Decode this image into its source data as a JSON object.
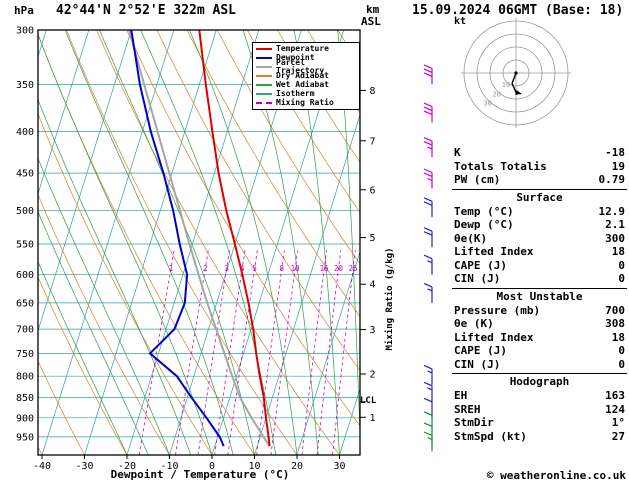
{
  "header": {
    "title": "42°44'N 2°52'E 322m ASL",
    "datetime": "15.09.2024 06GMT (Base: 18)"
  },
  "axes": {
    "pressure_unit": "hPa",
    "pressure_ticks": [
      300,
      350,
      400,
      450,
      500,
      550,
      600,
      650,
      700,
      750,
      800,
      850,
      900,
      950
    ],
    "temp_axis_label": "Dewpoint / Temperature (°C)",
    "temp_ticks": [
      -40,
      -30,
      -20,
      -10,
      0,
      10,
      20,
      30
    ],
    "km_label": "km",
    "asl_label": "ASL",
    "km_ticks": [
      1,
      2,
      3,
      4,
      5,
      6,
      7,
      8
    ],
    "mixing_ratio_axis_label": "Mixing Ratio (g/kg)",
    "lcl_label": "LCL"
  },
  "legend": [
    {
      "label": "Temperature",
      "color": "#dd0000",
      "dashed": false
    },
    {
      "label": "Dewpoint",
      "color": "#0000cc",
      "dashed": false
    },
    {
      "label": "Parcel Trajectory",
      "color": "#a6a6a6",
      "dashed": false
    },
    {
      "label": "Dry Adiabat",
      "color": "#d98032",
      "dashed": false
    },
    {
      "label": "Wet Adiabat",
      "color": "#2f9e44",
      "dashed": false
    },
    {
      "label": "Isotherm",
      "color": "#33a0a0",
      "dashed": false
    },
    {
      "label": "Mixing Ratio",
      "color": "#cc00cc",
      "dashed": true
    }
  ],
  "chart_data": {
    "type": "line",
    "title": "Skew-T log-P sounding",
    "xlabel": "Dewpoint / Temperature (°C)",
    "ylabel": "hPa",
    "xlim": [
      -40,
      35
    ],
    "ylim_hpa": [
      1000,
      300
    ],
    "pressure_hpa": [
      975,
      950,
      900,
      850,
      800,
      750,
      700,
      650,
      600,
      550,
      500,
      450,
      400,
      350,
      300
    ],
    "series": [
      {
        "name": "Temperature",
        "color": "#dd0000",
        "values": [
          12.9,
          12,
          10,
          8,
          5.5,
          3,
          0.5,
          -2.5,
          -6,
          -10,
          -14.5,
          -19,
          -23.5,
          -28.5,
          -34
        ]
      },
      {
        "name": "Dewpoint",
        "color": "#0000cc",
        "values": [
          2.1,
          0.5,
          -4,
          -9,
          -14,
          -22,
          -18,
          -17.5,
          -19,
          -23,
          -27,
          -32,
          -38,
          -44,
          -50
        ]
      },
      {
        "name": "Parcel Trajectory",
        "color": "#a6a6a6",
        "values": [
          12.9,
          10.8,
          6.6,
          2.4,
          -1,
          -4.5,
          -8.2,
          -12.2,
          -16.3,
          -20.7,
          -25.4,
          -30.6,
          -36.4,
          -43,
          -50.5
        ]
      }
    ],
    "mixing_ratio_g_kg": [
      1,
      2,
      3,
      4,
      5,
      8,
      10,
      16,
      20,
      25
    ],
    "mixing_ratio_label_pressure": 590,
    "isotherms_c": {
      "min": -70,
      "max": 40,
      "step": 10
    },
    "dry_adiabats_c": {
      "min": -40,
      "max": 120,
      "step": 10
    },
    "wet_adiabats_c": {
      "min": -20,
      "max": 40,
      "step": 5
    },
    "lcl_pressure_hpa": 860
  },
  "wind_barbs": [
    {
      "pressure_hpa": 350,
      "speed_kt": 30,
      "color": "#cc00cc"
    },
    {
      "pressure_hpa": 390,
      "speed_kt": 30,
      "color": "#cc00cc"
    },
    {
      "pressure_hpa": 430,
      "speed_kt": 25,
      "color": "#cc00cc"
    },
    {
      "pressure_hpa": 470,
      "speed_kt": 25,
      "color": "#cc00cc"
    },
    {
      "pressure_hpa": 510,
      "speed_kt": 20,
      "color": "#2222dd"
    },
    {
      "pressure_hpa": 555,
      "speed_kt": 20,
      "color": "#2222dd"
    },
    {
      "pressure_hpa": 600,
      "speed_kt": 15,
      "color": "#2222dd"
    },
    {
      "pressure_hpa": 650,
      "speed_kt": 15,
      "color": "#2222dd"
    },
    {
      "pressure_hpa": 820,
      "speed_kt": 15,
      "color": "#2222dd"
    },
    {
      "pressure_hpa": 860,
      "speed_kt": 15,
      "color": "#2222dd"
    },
    {
      "pressure_hpa": 900,
      "speed_kt": 10,
      "color": "#2222dd"
    },
    {
      "pressure_hpa": 935,
      "speed_kt": 10,
      "color": "#009933"
    },
    {
      "pressure_hpa": 965,
      "speed_kt": 10,
      "color": "#009933"
    },
    {
      "pressure_hpa": 990,
      "speed_kt": 15,
      "color": "#009933"
    }
  ],
  "hodograph": {
    "unit_label": "kt",
    "rings_kt": [
      10,
      20,
      30,
      40
    ],
    "ring_labels": [
      "10",
      "20",
      "30"
    ],
    "trace_uv_kt": [
      [
        0,
        0
      ],
      [
        -3,
        -8
      ],
      [
        0,
        -15
      ],
      [
        4,
        -16
      ]
    ]
  },
  "panel": {
    "indices": [
      {
        "label": "K",
        "value": "-18"
      },
      {
        "label": "Totals Totalis",
        "value": "19"
      },
      {
        "label": "PW (cm)",
        "value": "0.79"
      }
    ],
    "sections": [
      {
        "title": "Surface",
        "rows": [
          {
            "label": "Temp (°C)",
            "value": "12.9"
          },
          {
            "label": "Dewp (°C)",
            "value": "2.1"
          },
          {
            "label": "θe(K)",
            "value": "300"
          },
          {
            "label": "Lifted Index",
            "value": "18"
          },
          {
            "label": "CAPE (J)",
            "value": "0"
          },
          {
            "label": "CIN (J)",
            "value": "0"
          }
        ]
      },
      {
        "title": "Most Unstable",
        "rows": [
          {
            "label": "Pressure (mb)",
            "value": "700"
          },
          {
            "label": "θe (K)",
            "value": "308"
          },
          {
            "label": "Lifted Index",
            "value": "18"
          },
          {
            "label": "CAPE (J)",
            "value": "0"
          },
          {
            "label": "CIN (J)",
            "value": "0"
          }
        ]
      },
      {
        "title": "Hodograph",
        "rows": [
          {
            "label": "EH",
            "value": "163"
          },
          {
            "label": "SREH",
            "value": "124"
          },
          {
            "label": "StmDir",
            "value": "1°"
          },
          {
            "label": "StmSpd (kt)",
            "value": "27"
          }
        ]
      }
    ]
  },
  "footer": {
    "copyright": "© weatheronline.co.uk"
  },
  "colors": {
    "temperature": "#dd0000",
    "dewpoint": "#0000cc",
    "parcel": "#a6a6a6",
    "dry_adiabat": "#d98032",
    "wet_adiabat": "#2f9e44",
    "isotherm": "#33a0a0",
    "grid": "#33a0a0",
    "mixing_ratio": "#cc00cc",
    "frame": "#000000"
  }
}
